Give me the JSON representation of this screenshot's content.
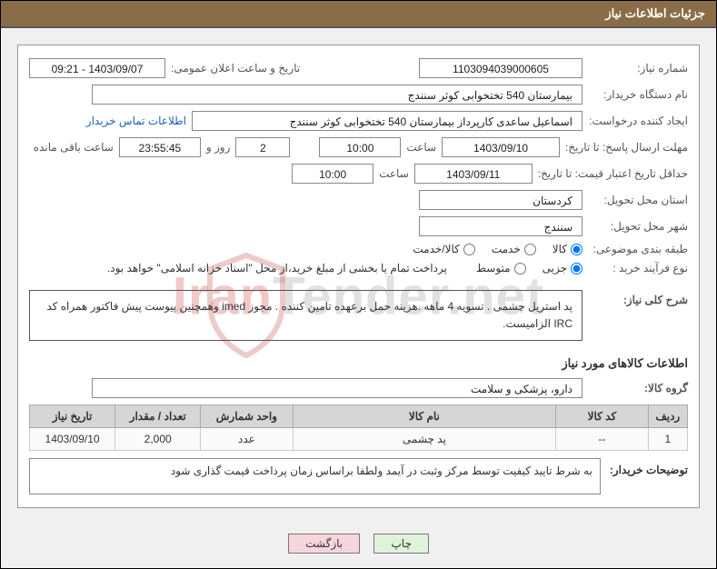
{
  "title_bar": "جزئیات اطلاعات نیاز",
  "labels": {
    "need_no": "شماره نیاز:",
    "announce_dt": "تاریخ و ساعت اعلان عمومی:",
    "buyer_org": "نام دستگاه خریدار:",
    "requester": "ایجاد کننده درخواست:",
    "contact_link": "اطلاعات تماس خریدار",
    "deadline": "مهلت ارسال پاسخ: تا تاریخ:",
    "time_word": "ساعت",
    "days_and": "روز و",
    "remaining": "ساعت باقی مانده",
    "validity": "حداقل تاریخ اعتبار قیمت: تا تاریخ:",
    "deliv_prov": "استان محل تحویل:",
    "deliv_city": "شهر محل تحویل:",
    "category": "طبقه بندی موضوعی:",
    "proc_type": "نوع فرآیند خرید :",
    "treasury_note": "پرداخت تمام یا بخشی از مبلغ خرید،از محل \"اسناد خزانه اسلامی\" خواهد بود.",
    "general_desc": "شرح کلی نیاز:",
    "items_head": "اطلاعات کالاهای مورد نیاز",
    "group": "گروه کالا:",
    "buyer_notes": "توضیحات خریدار:"
  },
  "values": {
    "need_no": "1103094039000605",
    "announce_dt": "1403/09/07 - 09:21",
    "buyer_org": "بیمارستان 540 تختخوابی کوثر سنندج",
    "requester": "اسماعیل ساعدی کارپرداز بیمارستان 540 تختخوابی کوثر سنندج",
    "deadline_date": "1403/09/10",
    "deadline_time": "10:00",
    "days_left": "2",
    "countdown": "23:55:45",
    "validity_date": "1403/09/11",
    "validity_time": "10:00",
    "province": "کردستان",
    "city": "سنندج",
    "general_desc": "پد استریل چشمی . تسویه 4 ماهه .هزینه حمل برعهده تامین کننده . مجوز imed وهمچنین پیوست پیش فاکتور همراه کد IRC  الزامیست.",
    "group": "دارو، پزشکی و سلامت",
    "buyer_notes": "به شرط تایید کیفیت توسط مرکز وثبت در آیمد ولطفا براساس زمان پرداخت قیمت گذاری شود"
  },
  "radios": {
    "category": [
      {
        "label": "کالا",
        "checked": true
      },
      {
        "label": "خدمت",
        "checked": false
      },
      {
        "label": "کالا/خدمت",
        "checked": false
      }
    ],
    "proc_type": [
      {
        "label": "جزیی",
        "checked": true
      },
      {
        "label": "متوسط",
        "checked": false
      }
    ]
  },
  "table": {
    "columns": [
      "ردیف",
      "کد کالا",
      "نام کالا",
      "واحد شمارش",
      "تعداد / مقدار",
      "تاریخ نیاز"
    ],
    "col_widths": [
      "6%",
      "14%",
      "40%",
      "14%",
      "13%",
      "13%"
    ],
    "rows": [
      [
        "1",
        "--",
        "پد چشمی",
        "عدد",
        "2,000",
        "1403/09/10"
      ]
    ]
  },
  "buttons": {
    "print": "چاپ",
    "back": "بازگشت"
  },
  "watermark": {
    "part1": "Iran",
    "part2": "Tender.net"
  },
  "colors": {
    "title_bg": "#8a6d47",
    "link": "#1a5fb4",
    "th_bg": "#d6d6d6",
    "btn_print_bg": "#dff3da",
    "btn_back_bg": "#f6d6dc"
  }
}
